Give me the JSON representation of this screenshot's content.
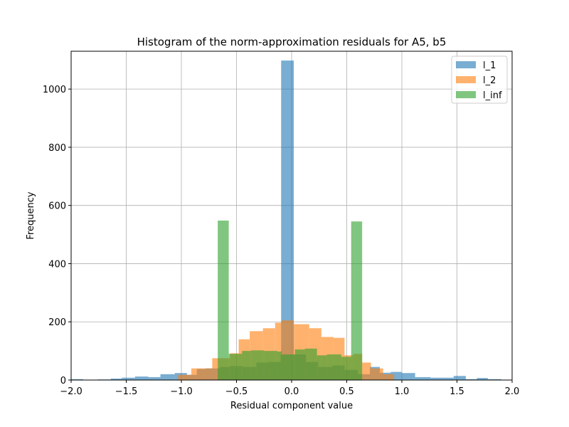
{
  "chart_data": {
    "type": "bar",
    "title": "Histogram of the norm-approximation residuals for A5, b5",
    "xlabel": "Residual component value",
    "ylabel": "Frequency",
    "xlim": [
      -2.0,
      2.0
    ],
    "ylim": [
      0,
      1130
    ],
    "xticks": [
      -2.0,
      -1.5,
      -1.0,
      -0.5,
      0.0,
      0.5,
      1.0,
      1.5,
      2.0
    ],
    "xtick_labels": [
      "−2.0",
      "−1.5",
      "−1.0",
      "−0.5",
      "0.0",
      "0.5",
      "1.0",
      "1.5",
      "2.0"
    ],
    "yticks": [
      0,
      200,
      400,
      600,
      800,
      1000
    ],
    "ytick_labels": [
      "0",
      "200",
      "400",
      "600",
      "800",
      "1000"
    ],
    "grid": true,
    "legend_position": "top-right",
    "series": [
      {
        "name": "l_1",
        "color": "#1f77b4",
        "opacity": 0.6,
        "bins": [
          [
            -2.0,
            -1.89,
            3
          ],
          [
            -1.89,
            -1.76,
            1
          ],
          [
            -1.76,
            -1.64,
            2
          ],
          [
            -1.64,
            -1.54,
            5
          ],
          [
            -1.54,
            -1.42,
            8
          ],
          [
            -1.42,
            -1.3,
            12
          ],
          [
            -1.3,
            -1.19,
            10
          ],
          [
            -1.19,
            -1.06,
            20
          ],
          [
            -1.06,
            -0.95,
            24
          ],
          [
            -0.95,
            -0.86,
            18
          ],
          [
            -0.86,
            -0.78,
            38
          ],
          [
            -0.78,
            -0.65,
            40
          ],
          [
            -0.65,
            -0.56,
            45
          ],
          [
            -0.56,
            -0.44,
            48
          ],
          [
            -0.44,
            -0.32,
            45
          ],
          [
            -0.32,
            -0.21,
            60
          ],
          [
            -0.21,
            -0.1,
            62
          ],
          [
            -0.1,
            -0.095,
            85
          ],
          [
            -0.095,
            0.02,
            1098
          ],
          [
            0.02,
            0.13,
            88
          ],
          [
            0.13,
            0.24,
            62
          ],
          [
            0.24,
            0.37,
            45
          ],
          [
            0.37,
            0.48,
            50
          ],
          [
            0.48,
            0.6,
            35
          ],
          [
            0.6,
            0.71,
            20
          ],
          [
            0.71,
            0.8,
            45
          ],
          [
            0.8,
            0.9,
            25
          ],
          [
            0.9,
            1.0,
            28
          ],
          [
            1.0,
            1.12,
            24
          ],
          [
            1.12,
            1.26,
            10
          ],
          [
            1.26,
            1.37,
            8
          ],
          [
            1.37,
            1.47,
            8
          ],
          [
            1.47,
            1.58,
            14
          ],
          [
            1.58,
            1.68,
            3
          ],
          [
            1.68,
            1.78,
            7
          ],
          [
            1.78,
            1.9,
            3
          ]
        ]
      },
      {
        "name": "l_2",
        "color": "#ff7f0e",
        "opacity": 0.6,
        "bins": [
          [
            -1.03,
            -0.91,
            18
          ],
          [
            -0.91,
            -0.72,
            40
          ],
          [
            -0.72,
            -0.56,
            75
          ],
          [
            -0.56,
            -0.48,
            92
          ],
          [
            -0.48,
            -0.38,
            140
          ],
          [
            -0.38,
            -0.26,
            168
          ],
          [
            -0.26,
            -0.15,
            178
          ],
          [
            -0.15,
            -0.09,
            197
          ],
          [
            -0.09,
            0.02,
            205
          ],
          [
            0.02,
            0.16,
            192
          ],
          [
            0.16,
            0.27,
            178
          ],
          [
            0.27,
            0.38,
            148
          ],
          [
            0.38,
            0.48,
            145
          ],
          [
            0.48,
            0.56,
            85
          ],
          [
            0.56,
            0.64,
            90
          ],
          [
            0.64,
            0.72,
            60
          ],
          [
            0.72,
            0.83,
            40
          ],
          [
            0.83,
            0.93,
            20
          ]
        ]
      },
      {
        "name": "l_inf",
        "color": "#2ca02c",
        "opacity": 0.6,
        "bins": [
          [
            -0.67,
            -0.57,
            548
          ],
          [
            -0.57,
            -0.45,
            90
          ],
          [
            -0.45,
            -0.37,
            100
          ],
          [
            -0.37,
            -0.25,
            102
          ],
          [
            -0.25,
            -0.13,
            100
          ],
          [
            -0.13,
            -0.09,
            98
          ],
          [
            -0.09,
            0.03,
            88
          ],
          [
            0.03,
            0.12,
            105
          ],
          [
            0.12,
            0.23,
            108
          ],
          [
            0.23,
            0.32,
            85
          ],
          [
            0.32,
            0.45,
            88
          ],
          [
            0.45,
            0.54,
            80
          ],
          [
            0.54,
            0.64,
            545
          ]
        ]
      }
    ]
  }
}
